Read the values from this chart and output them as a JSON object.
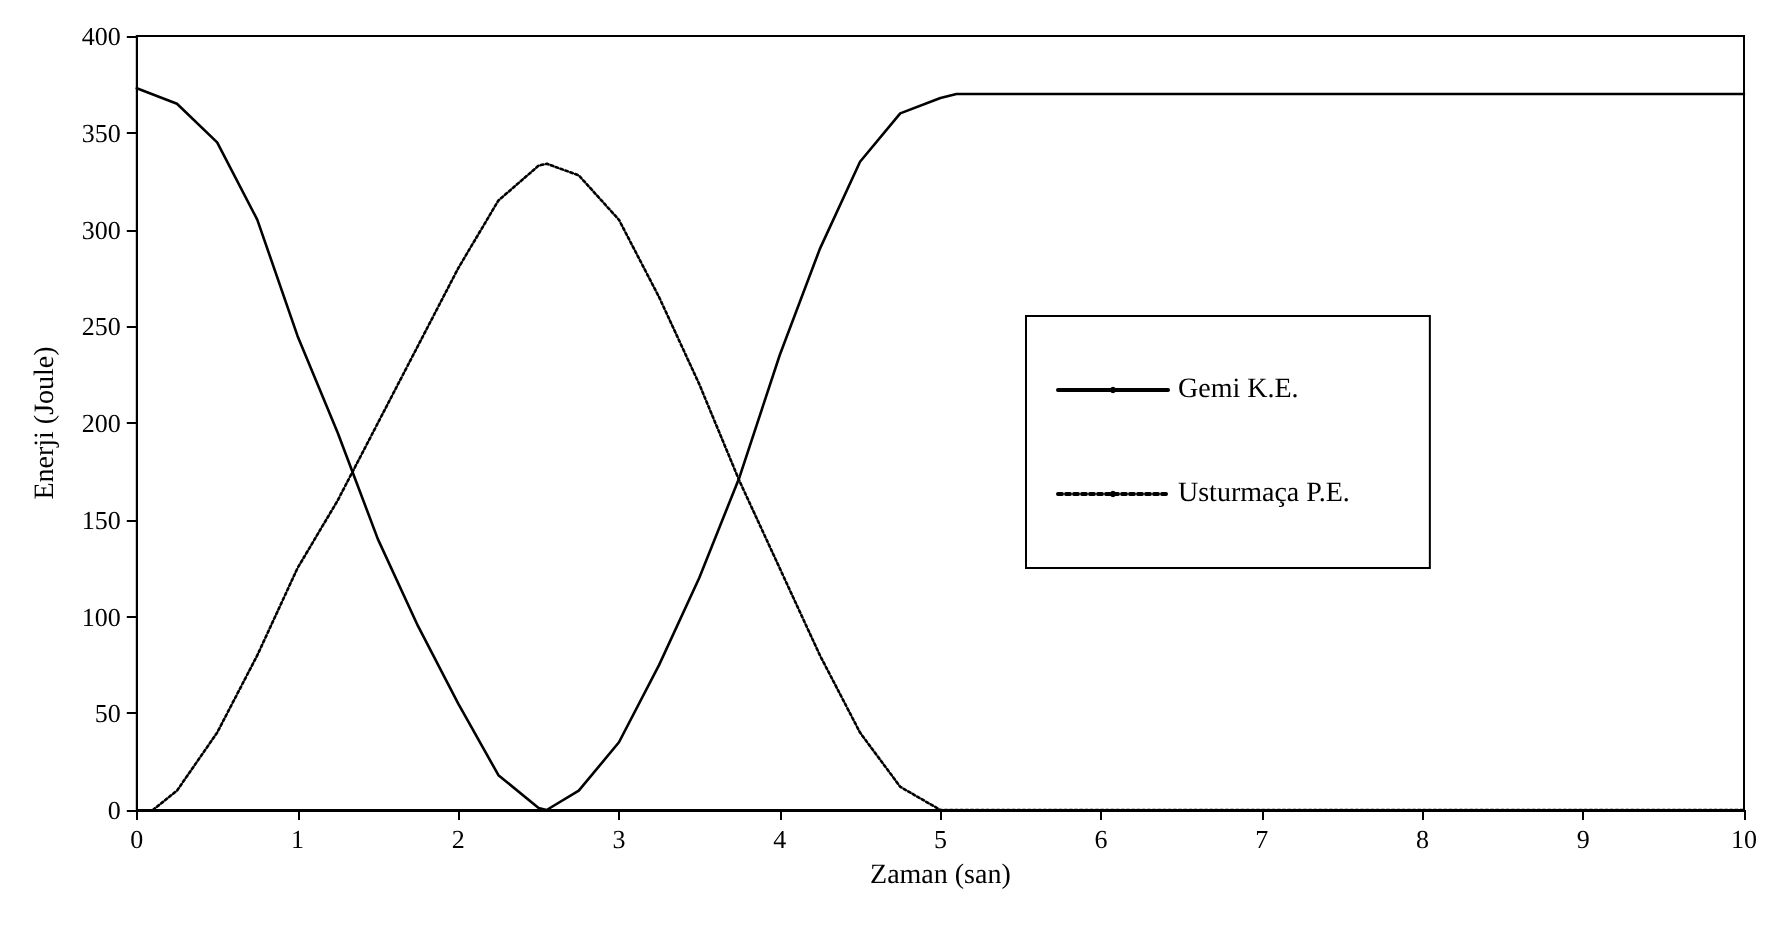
{
  "chart_data": {
    "type": "line",
    "xlabel": "Zaman (san)",
    "ylabel": "Enerji (Joule)",
    "xlim": [
      0,
      10
    ],
    "xticks": [
      0,
      1,
      2,
      3,
      4,
      5,
      6,
      7,
      8,
      9,
      10
    ],
    "ylim": [
      0,
      400
    ],
    "yticks": [
      0,
      50,
      100,
      150,
      200,
      250,
      300,
      350,
      400
    ],
    "grid": false,
    "legend": "right",
    "marker": "none",
    "series": [
      {
        "name": "Gemi K.E.",
        "color": "#000000",
        "line_style": "solid",
        "x": [
          0,
          0.25,
          0.5,
          0.75,
          1,
          1.25,
          1.5,
          1.75,
          2,
          2.25,
          2.5,
          2.55,
          2.75,
          3,
          3.25,
          3.5,
          3.75,
          4,
          4.25,
          4.5,
          4.75,
          5,
          5.1,
          10
        ],
        "values": [
          373,
          365,
          345,
          305,
          245,
          195,
          140,
          95,
          55,
          18,
          1,
          0,
          10,
          35,
          75,
          120,
          172,
          235,
          290,
          335,
          360,
          368,
          370,
          370
        ]
      },
      {
        "name": "Usturmaça P.E.",
        "color": "#000000",
        "line_style": "dotted",
        "x": [
          0.1,
          0.25,
          0.5,
          0.75,
          1,
          1.25,
          1.5,
          1.75,
          2,
          2.25,
          2.5,
          2.55,
          2.75,
          3,
          3.25,
          3.5,
          3.75,
          4,
          4.25,
          4.5,
          4.75,
          5,
          10
        ],
        "values": [
          0,
          10,
          40,
          80,
          125,
          160,
          200,
          240,
          280,
          315,
          333,
          334,
          328,
          305,
          265,
          220,
          170,
          125,
          80,
          40,
          12,
          0,
          0
        ]
      }
    ]
  }
}
